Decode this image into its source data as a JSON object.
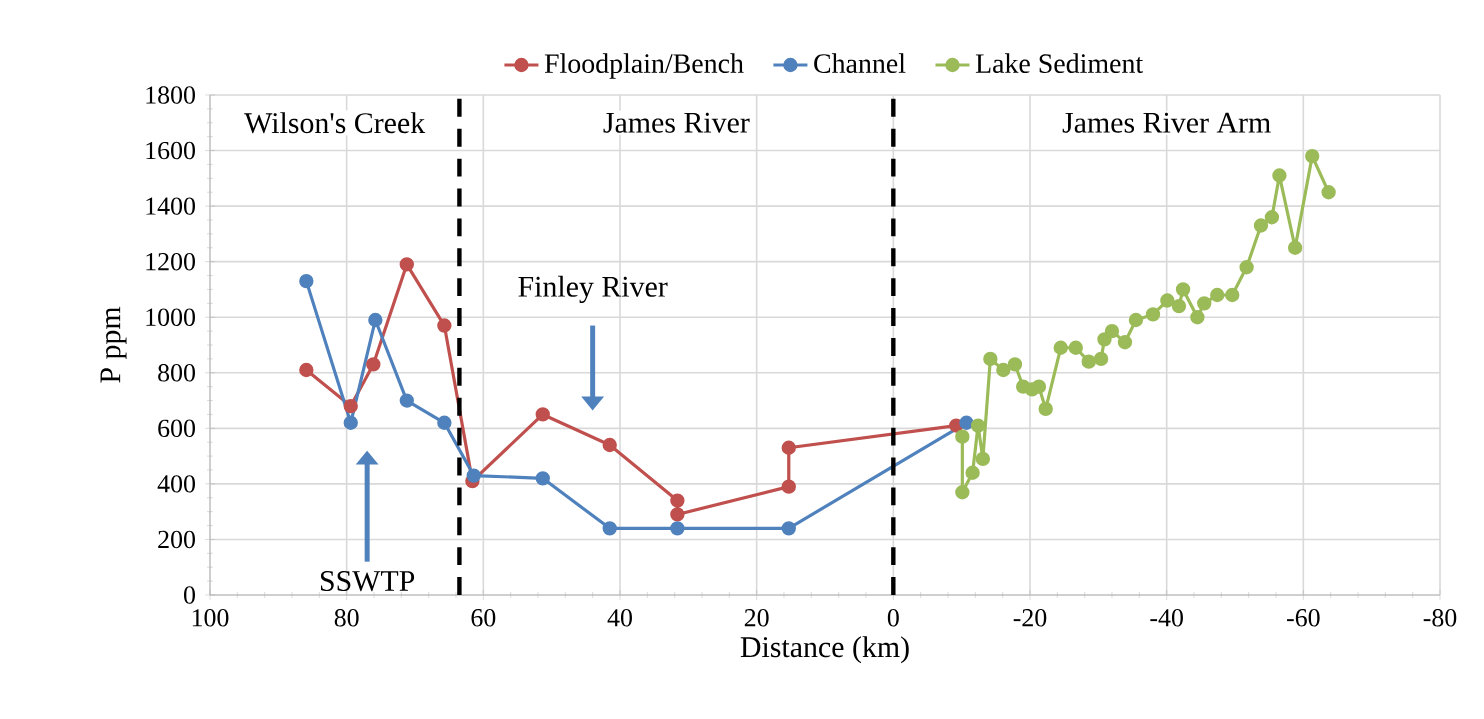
{
  "chart_data": {
    "type": "line",
    "xlabel": "Distance (km)",
    "ylabel": "P ppm",
    "xlim": [
      100,
      -80
    ],
    "xticks": [
      100,
      80,
      60,
      40,
      20,
      0,
      -20,
      -40,
      -60,
      -80
    ],
    "ylim": [
      0,
      1800
    ],
    "yticks": [
      0,
      200,
      400,
      600,
      800,
      1000,
      1200,
      1400,
      1600,
      1800
    ],
    "grid": true,
    "legend": "top",
    "marker": "circle",
    "line_style": "solid",
    "series": [
      {
        "name": "Floodplain/Bench",
        "color": "#c0504d",
        "x": [
          85.9,
          79.4,
          76.1,
          71.2,
          65.7,
          61.6,
          51.3,
          41.5,
          31.6,
          31.6,
          15.3,
          15.3,
          -9.2
        ],
        "values": [
          810,
          680,
          830,
          1190,
          970,
          410,
          650,
          540,
          340,
          290,
          390,
          530,
          610
        ]
      },
      {
        "name": "Channel",
        "color": "#4f81bd",
        "x": [
          85.9,
          79.4,
          75.8,
          71.2,
          65.7,
          61.4,
          51.3,
          41.5,
          31.6,
          15.3,
          -10.7
        ],
        "values": [
          1130,
          620,
          990,
          700,
          620,
          430,
          420,
          240,
          240,
          240,
          620
        ]
      },
      {
        "name": "Lake Sediment",
        "color": "#9bbb59",
        "x": [
          -10.1,
          -10.1,
          -11.6,
          -12.4,
          -13.1,
          -14.2,
          -16.1,
          -17.8,
          -19.0,
          -20.3,
          -21.3,
          -22.3,
          -24.5,
          -26.7,
          -28.6,
          -30.4,
          -30.9,
          -32.0,
          -33.9,
          -35.5,
          -38.0,
          -40.1,
          -41.8,
          -42.4,
          -44.5,
          -45.5,
          -47.4,
          -49.6,
          -51.7,
          -53.8,
          -55.4,
          -56.5,
          -58.8,
          -61.3,
          -63.7
        ],
        "values": [
          570,
          370,
          440,
          610,
          490,
          850,
          810,
          830,
          750,
          740,
          750,
          670,
          890,
          890,
          840,
          850,
          920,
          950,
          910,
          990,
          1010,
          1060,
          1040,
          1100,
          1000,
          1050,
          1080,
          1080,
          1180,
          1330,
          1360,
          1510,
          1250,
          1580,
          1450
        ]
      }
    ],
    "ref_lines": [
      {
        "axis": "x",
        "value": 63.5,
        "color": "#000000",
        "line_style": "dashed"
      },
      {
        "axis": "x",
        "value": 0,
        "color": "#000000",
        "line_style": "dashed"
      }
    ],
    "annotations": [
      "Wilson's Creek",
      "James River",
      "James River Arm",
      "Finley River",
      "SSWTP"
    ]
  }
}
